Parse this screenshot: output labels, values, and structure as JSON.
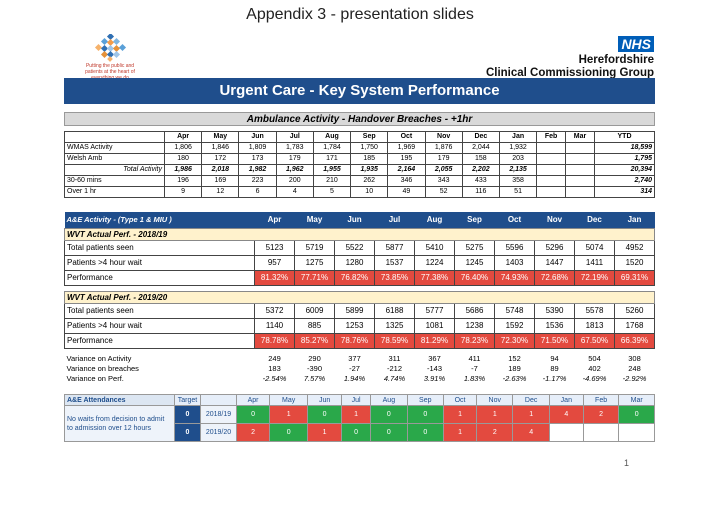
{
  "page": {
    "title": "Appendix 3 - presentation slides",
    "page_number": "1"
  },
  "logo": {
    "tagline": [
      "Putting the public and",
      "patients at the heart of",
      "everything we do"
    ]
  },
  "nhs": {
    "badge": "NHS",
    "line1": "Herefordshire",
    "line2": "Clinical Commissioning Group"
  },
  "banner": "Urgent Care - Key System Performance",
  "ambulance": {
    "heading": "Ambulance Activity - Handover Breaches - +1hr",
    "months": [
      "Apr",
      "May",
      "Jun",
      "Jul",
      "Aug",
      "Sep",
      "Oct",
      "Nov",
      "Dec",
      "Jan",
      "Feb",
      "Mar"
    ],
    "ytd_label": "YTD",
    "rows": [
      {
        "label": "WMAS Activity",
        "values": [
          "1,806",
          "1,846",
          "1,809",
          "1,783",
          "1,784",
          "1,750",
          "1,969",
          "1,876",
          "2,044",
          "1,932",
          "",
          ""
        ],
        "ytd": "18,599"
      },
      {
        "label": "Welsh Amb",
        "values": [
          "180",
          "172",
          "173",
          "179",
          "171",
          "185",
          "195",
          "179",
          "158",
          "203",
          "",
          ""
        ],
        "ytd": "1,795"
      },
      {
        "label": "Total Activity",
        "values": [
          "1,986",
          "2,018",
          "1,982",
          "1,962",
          "1,955",
          "1,935",
          "2,164",
          "2,055",
          "2,202",
          "2,135",
          "",
          ""
        ],
        "ytd": "20,394"
      },
      {
        "label": "30-60 mins",
        "values": [
          "196",
          "169",
          "223",
          "200",
          "210",
          "262",
          "346",
          "343",
          "433",
          "358",
          "",
          ""
        ],
        "ytd": "2,740"
      },
      {
        "label": "Over 1 hr",
        "values": [
          "9",
          "12",
          "6",
          "4",
          "5",
          "10",
          "49",
          "52",
          "116",
          "51",
          "",
          ""
        ],
        "ytd": "314"
      }
    ]
  },
  "ae": {
    "heading": "A&E Activity - (Type 1 & MIU )",
    "months": [
      "Apr",
      "May",
      "Jun",
      "Jul",
      "Aug",
      "Sep",
      "Oct",
      "Nov",
      "Dec",
      "Jan"
    ],
    "section1": {
      "title": "WVT Actual Perf. - 2018/19",
      "seen": {
        "label": "Total patients seen",
        "values": [
          "5123",
          "5719",
          "5522",
          "5877",
          "5410",
          "5275",
          "5596",
          "5296",
          "5074",
          "4952"
        ]
      },
      "wait": {
        "label": "Patients >4 hour wait",
        "values": [
          "957",
          "1275",
          "1280",
          "1537",
          "1224",
          "1245",
          "1403",
          "1447",
          "1411",
          "1520"
        ]
      },
      "perf": {
        "label": "Performance",
        "values": [
          "81.32%",
          "77.71%",
          "76.82%",
          "73.85%",
          "77.38%",
          "76.40%",
          "74.93%",
          "72.68%",
          "72.19%",
          "69.31%"
        ]
      }
    },
    "section2": {
      "title": "WVT Actual Perf. - 2019/20",
      "seen": {
        "label": "Total patients seen",
        "values": [
          "5372",
          "6009",
          "5899",
          "6188",
          "5777",
          "5686",
          "5748",
          "5390",
          "5578",
          "5260"
        ]
      },
      "wait": {
        "label": "Patients >4 hour wait",
        "values": [
          "1140",
          "885",
          "1253",
          "1325",
          "1081",
          "1238",
          "1592",
          "1536",
          "1813",
          "1768"
        ]
      },
      "perf": {
        "label": "Performance",
        "values": [
          "78.78%",
          "85.27%",
          "78.76%",
          "78.59%",
          "81.29%",
          "78.23%",
          "72.30%",
          "71.50%",
          "67.50%",
          "66.39%"
        ]
      }
    },
    "variance": [
      {
        "label": "Variance on Activity",
        "values": [
          "249",
          "290",
          "377",
          "311",
          "367",
          "411",
          "152",
          "94",
          "504",
          "308"
        ]
      },
      {
        "label": "Variance on breaches",
        "values": [
          "183",
          "-390",
          "-27",
          "-212",
          "-143",
          "-7",
          "189",
          "89",
          "402",
          "248"
        ]
      },
      {
        "label": "Variance on Perf.",
        "values": [
          "-2.54%",
          "7.57%",
          "1.94%",
          "4.74%",
          "3.91%",
          "1.83%",
          "-2.63%",
          "-1.17%",
          "-4.69%",
          "-2.92%"
        ]
      }
    ]
  },
  "attendances": {
    "title": "A&E Attendances",
    "target_label": "Target",
    "months": [
      "Apr",
      "May",
      "Jun",
      "Jul",
      "Aug",
      "Sep",
      "Oct",
      "Nov",
      "Dec",
      "Jan",
      "Feb",
      "Mar"
    ],
    "description": "No waits from decision to admit to admission over 12 hours",
    "rows": [
      {
        "target": "0",
        "year": "2018/19",
        "values": [
          "0",
          "1",
          "0",
          "1",
          "0",
          "0",
          "1",
          "1",
          "1",
          "4",
          "2",
          "0"
        ],
        "colors": [
          "g",
          "r",
          "g",
          "r",
          "g",
          "g",
          "r",
          "r",
          "r",
          "r",
          "r",
          "g"
        ]
      },
      {
        "target": "0",
        "year": "2019/20",
        "values": [
          "2",
          "0",
          "1",
          "0",
          "0",
          "0",
          "1",
          "2",
          "4",
          "",
          "",
          ""
        ],
        "colors": [
          "r",
          "g",
          "r",
          "g",
          "g",
          "g",
          "r",
          "r",
          "r",
          "e",
          "e",
          "e"
        ]
      }
    ]
  },
  "colors": {
    "banner": "#1f4e8c",
    "red": "#e34a3f",
    "green": "#2aa84a",
    "section": "#fff2cc"
  }
}
